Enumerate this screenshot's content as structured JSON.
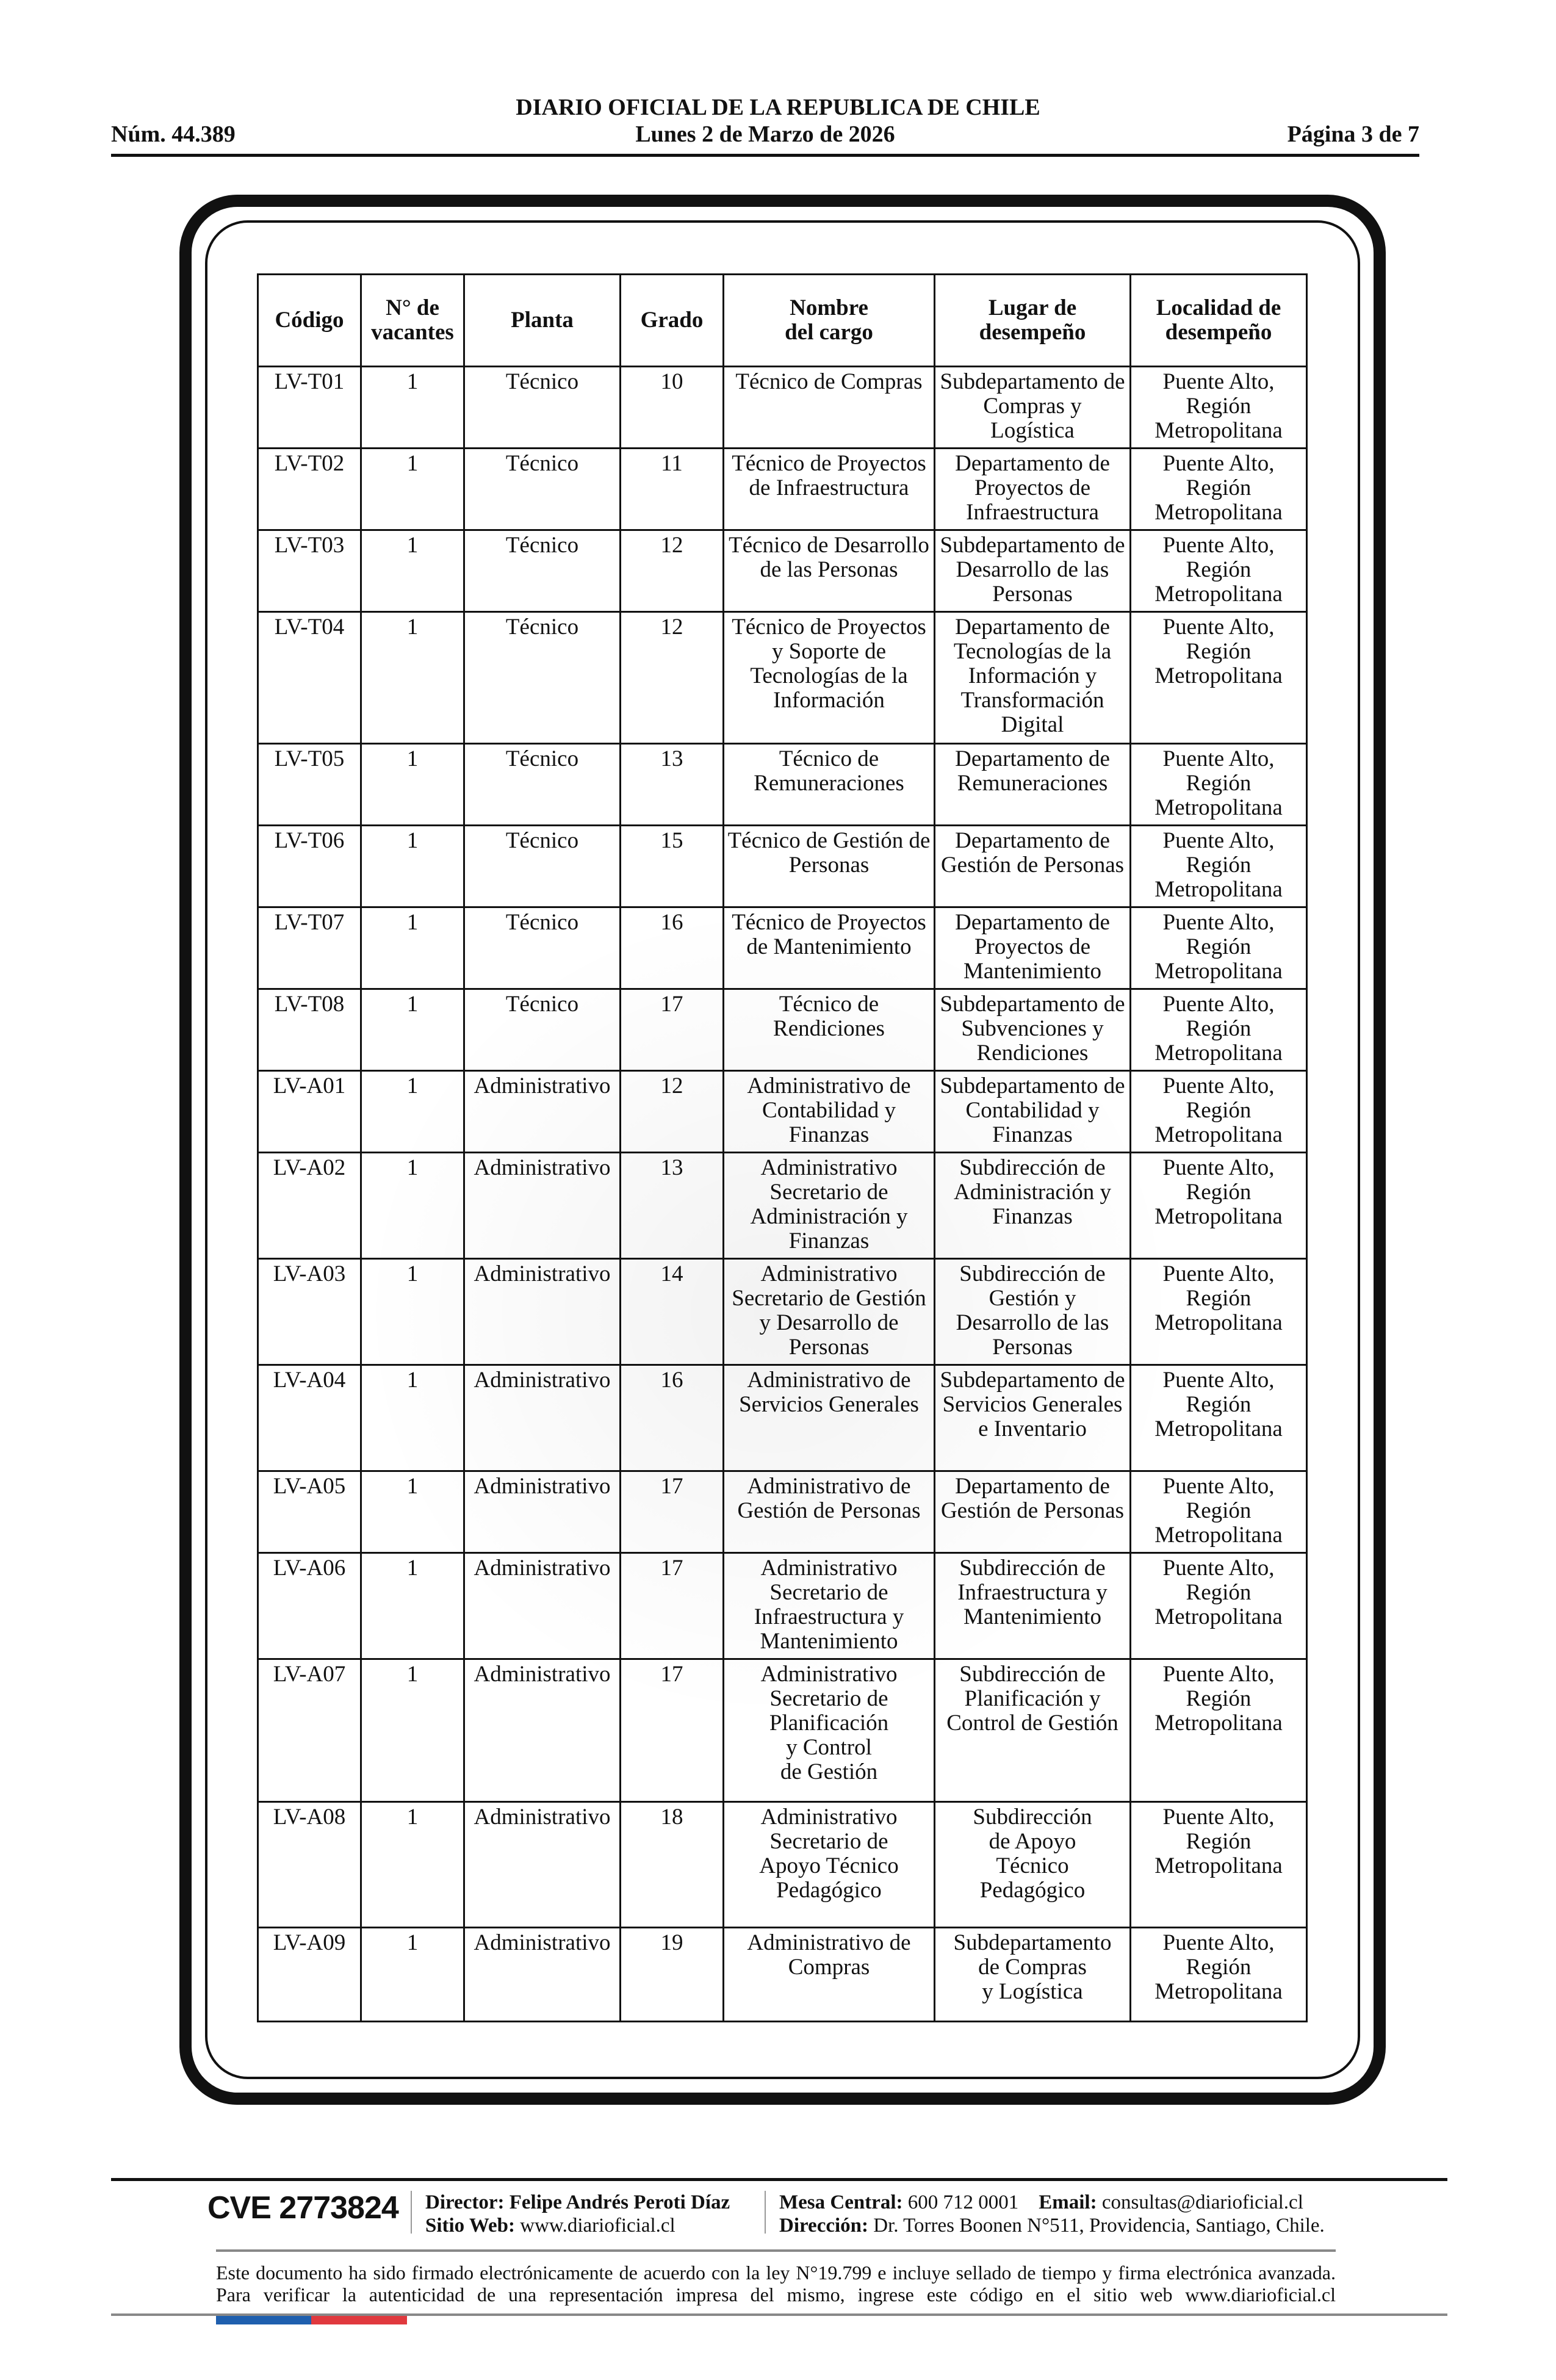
{
  "header": {
    "title": "DIARIO OFICIAL DE LA REPUBLICA DE CHILE",
    "issue_number": "Núm. 44.389",
    "date": "Lunes 2 de Marzo de 2026",
    "page": "Página 3 de 7"
  },
  "table": {
    "columns": [
      "Código",
      "N° de\nvacantes",
      "Planta",
      "Grado",
      "Nombre\ndel cargo",
      "Lugar de\ndesempeño",
      "Localidad de\ndesempeño"
    ],
    "rows": [
      [
        "LV-T01",
        "1",
        "Técnico",
        "10",
        "Técnico de Compras",
        "Subdepartamento de\nCompras y\nLogística",
        "Puente Alto,\nRegión\nMetropolitana"
      ],
      [
        "LV-T02",
        "1",
        "Técnico",
        "11",
        "Técnico de Proyectos\nde Infraestructura",
        "Departamento de\nProyectos de\nInfraestructura",
        "Puente Alto,\nRegión\nMetropolitana"
      ],
      [
        "LV-T03",
        "1",
        "Técnico",
        "12",
        "Técnico de Desarrollo\nde las Personas",
        "Subdepartamento de\nDesarrollo de las\nPersonas",
        "Puente Alto,\nRegión\nMetropolitana"
      ],
      [
        "LV-T04",
        "1",
        "Técnico",
        "12",
        "Técnico de Proyectos\ny Soporte de\nTecnologías de la\nInformación",
        "Departamento de\nTecnologías de la\nInformación y\nTransformación\nDigital",
        "Puente Alto,\nRegión\nMetropolitana"
      ],
      [
        "LV-T05",
        "1",
        "Técnico",
        "13",
        "Técnico de\nRemuneraciones",
        "Departamento de\nRemuneraciones",
        "Puente Alto,\nRegión\nMetropolitana"
      ],
      [
        "LV-T06",
        "1",
        "Técnico",
        "15",
        "Técnico de Gestión de\nPersonas",
        "Departamento de\nGestión de Personas",
        "Puente Alto,\nRegión\nMetropolitana"
      ],
      [
        "LV-T07",
        "1",
        "Técnico",
        "16",
        "Técnico de Proyectos\nde Mantenimiento",
        "Departamento de\nProyectos de\nMantenimiento",
        "Puente Alto,\nRegión\nMetropolitana"
      ],
      [
        "LV-T08",
        "1",
        "Técnico",
        "17",
        "Técnico de\nRendiciones",
        "Subdepartamento de\nSubvenciones y\nRendiciones",
        "Puente Alto,\nRegión\nMetropolitana"
      ],
      [
        "LV-A01",
        "1",
        "Administrativo",
        "12",
        "Administrativo de\nContabilidad y\nFinanzas",
        "Subdepartamento de\nContabilidad y\nFinanzas",
        "Puente Alto,\nRegión\nMetropolitana"
      ],
      [
        "LV-A02",
        "1",
        "Administrativo",
        "13",
        "Administrativo\nSecretario de\nAdministración y\nFinanzas",
        "Subdirección de\nAdministración y\nFinanzas",
        "Puente Alto,\nRegión\nMetropolitana"
      ],
      [
        "LV-A03",
        "1",
        "Administrativo",
        "14",
        "Administrativo\nSecretario de Gestión\ny Desarrollo de\nPersonas",
        "Subdirección de\nGestión y\nDesarrollo de las\nPersonas",
        "Puente Alto,\nRegión\nMetropolitana"
      ],
      [
        "LV-A04",
        "1",
        "Administrativo",
        "16",
        "Administrativo de\nServicios Generales",
        "Subdepartamento de\nServicios Generales\ne Inventario",
        "Puente Alto,\nRegión\nMetropolitana"
      ],
      [
        "LV-A05",
        "1",
        "Administrativo",
        "17",
        "Administrativo de\nGestión de Personas",
        "Departamento de\nGestión de Personas",
        "Puente Alto,\nRegión\nMetropolitana"
      ],
      [
        "LV-A06",
        "1",
        "Administrativo",
        "17",
        "Administrativo\nSecretario de\nInfraestructura y\nMantenimiento",
        "Subdirección de\nInfraestructura y\nMantenimiento",
        "Puente Alto,\nRegión\nMetropolitana"
      ],
      [
        "LV-A07",
        "1",
        "Administrativo",
        "17",
        "Administrativo\nSecretario de\nPlanificación\ny Control\nde Gestión",
        "Subdirección de\nPlanificación y\nControl de Gestión",
        "Puente Alto,\nRegión\nMetropolitana"
      ],
      [
        "LV-A08",
        "1",
        "Administrativo",
        "18",
        "Administrativo\nSecretario de\nApoyo Técnico\nPedagógico",
        "Subdirección\nde Apoyo\nTécnico\nPedagógico",
        "Puente Alto,\nRegión\nMetropolitana"
      ],
      [
        "LV-A09",
        "1",
        "Administrativo",
        "19",
        "Administrativo de\nCompras",
        "Subdepartamento\nde Compras\ny Logística",
        "Puente Alto,\nRegión\nMetropolitana"
      ]
    ]
  },
  "footer": {
    "cve": "CVE 2773824",
    "director_label": "Director:",
    "director": "Felipe Andrés Peroti Díaz",
    "web_label": "Sitio Web:",
    "web": "www.diarioficial.cl",
    "phone_label": "Mesa Central:",
    "phone": "600 712 0001",
    "email_label": "Email:",
    "email": "consultas@diarioficial.cl",
    "address_label": "Dirección:",
    "address": "Dr. Torres Boonen N°511, Providencia, Santiago, Chile.",
    "note": "Este documento ha sido firmado electrónicamente de acuerdo con la ley N°19.799 e incluye sellado de tiempo y firma electrónica avanzada. Para verificar la autenticidad de una representación impresa del mismo, ingrese este código en el sitio web www.diarioficial.cl",
    "flag_colors": [
      "#1f5fae",
      "#e0393e"
    ]
  }
}
